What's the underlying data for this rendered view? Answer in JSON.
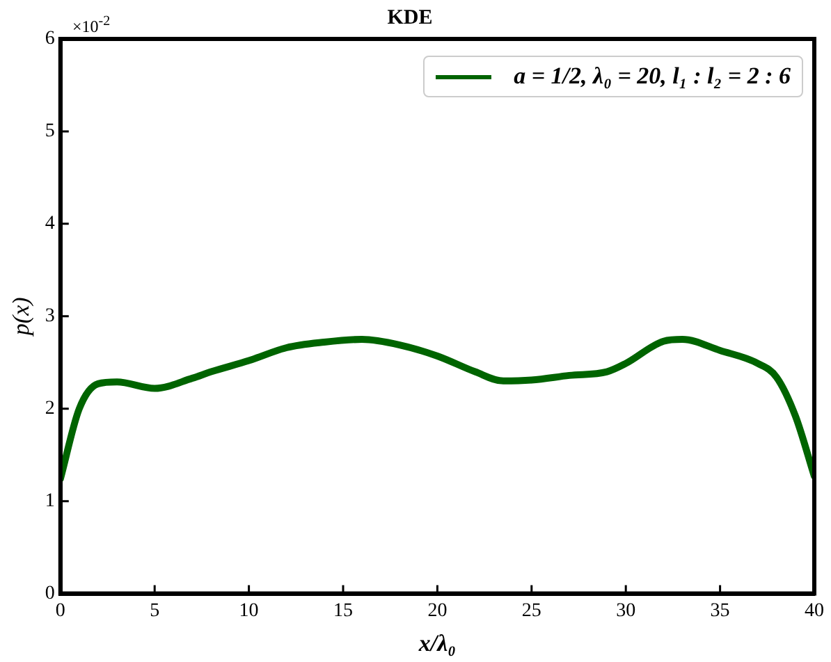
{
  "chart_data": {
    "type": "line",
    "title": "KDE",
    "xlabel": "x/λ₀",
    "ylabel": "p(x)",
    "annotations": [
      "×10$^{-2}$"
    ],
    "x": [
      0,
      1,
      2,
      3,
      5,
      7,
      8,
      10,
      12,
      14,
      16,
      18,
      20,
      22,
      23.5,
      25,
      27,
      29,
      30,
      32,
      33,
      35,
      37,
      38,
      39,
      40
    ],
    "series": [
      {
        "name": "a = 1/2, λ₀ = 20, l₁ : l₂ = 2 : 6",
        "color": "#006400",
        "values": [
          1.24,
          2.0,
          2.27,
          2.29,
          2.22,
          2.33,
          2.4,
          2.52,
          2.66,
          2.72,
          2.75,
          2.69,
          2.57,
          2.4,
          2.3,
          2.31,
          2.36,
          2.4,
          2.49,
          2.73,
          2.75,
          2.63,
          2.49,
          2.34,
          1.92,
          1.27
        ]
      }
    ],
    "xlim": [
      0,
      40
    ],
    "xticks": [
      0,
      5,
      10,
      15,
      20,
      25,
      30,
      35,
      40
    ],
    "ylim": [
      0,
      6
    ],
    "yticks": [
      0,
      1,
      2,
      3,
      4,
      5,
      6
    ],
    "grid": false,
    "legend": "top right",
    "marker": "none",
    "line_style": "solid"
  }
}
